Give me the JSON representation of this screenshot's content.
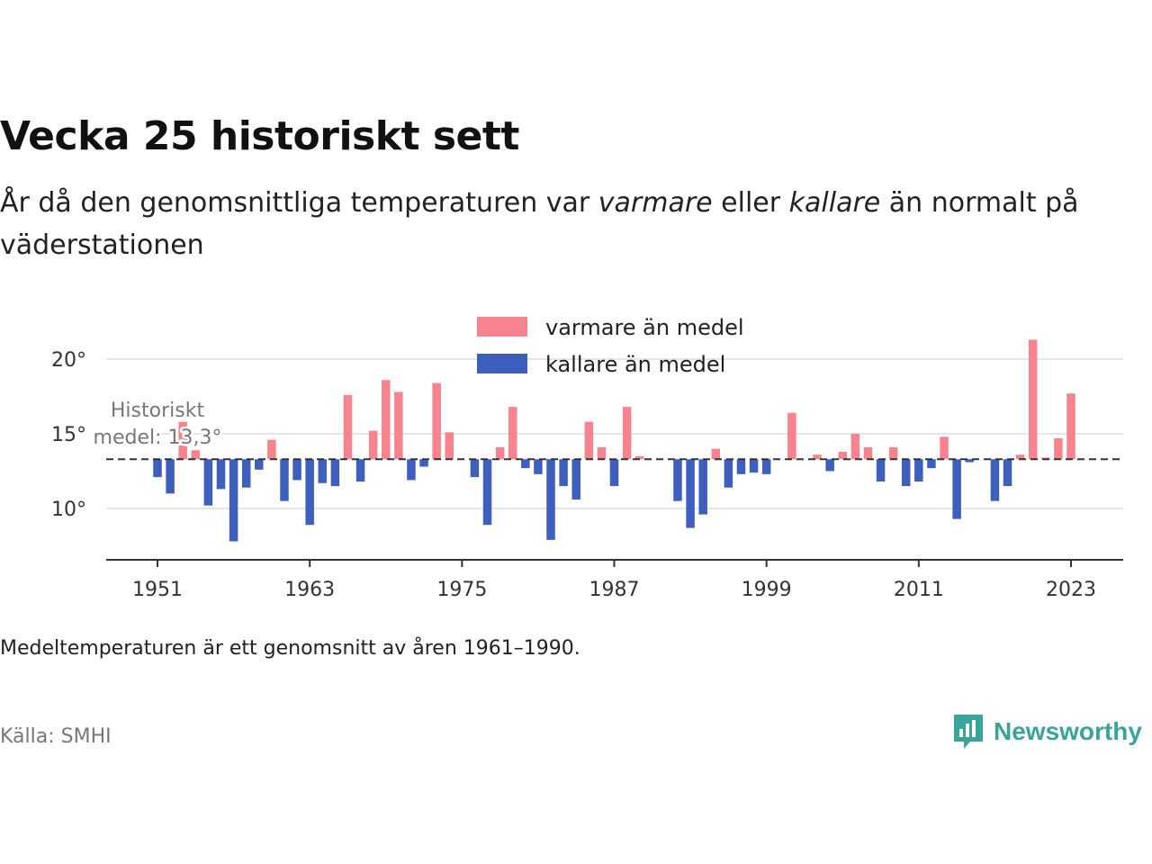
{
  "title": "Vecka 25 historiskt sett",
  "subtitle": {
    "part1": "År då den genomsnittliga temperaturen var ",
    "warmer": "varmare",
    "part2": " eller ",
    "colder": "kallare",
    "part3": " än normalt på väderstationen"
  },
  "note": "Medeltemperaturen är ett genomsnitt av åren 1961–1990.",
  "source": "Källa: SMHI",
  "brand": "Newsworthy",
  "colors": {
    "warm": "#f7838f",
    "cold": "#3f5fbf",
    "grid": "#dddddd",
    "axis": "#333333",
    "brand": "#3aa39a"
  },
  "chart_data": {
    "type": "bar",
    "baseline": 13.3,
    "baseline_label": [
      "Historiskt",
      "medel: 13,3°"
    ],
    "ylim": [
      6.5,
      22.5
    ],
    "yticks": [
      10,
      15,
      20
    ],
    "ytick_labels": [
      "10°",
      "15°",
      "20°"
    ],
    "xticks": [
      1951,
      1963,
      1975,
      1987,
      1999,
      2011,
      2023
    ],
    "xlim": [
      1947,
      2027
    ],
    "legend": [
      {
        "key": "warm",
        "label": "varmare än medel"
      },
      {
        "key": "cold",
        "label": "kallare än medel"
      }
    ],
    "years": [
      1951,
      1952,
      1953,
      1954,
      1955,
      1956,
      1957,
      1958,
      1959,
      1960,
      1961,
      1962,
      1963,
      1964,
      1965,
      1966,
      1967,
      1968,
      1969,
      1970,
      1971,
      1972,
      1973,
      1974,
      1975,
      1976,
      1977,
      1978,
      1979,
      1980,
      1981,
      1982,
      1983,
      1984,
      1985,
      1986,
      1987,
      1988,
      1989,
      1990,
      1991,
      1992,
      1993,
      1994,
      1995,
      1996,
      1997,
      1998,
      1999,
      2000,
      2001,
      2002,
      2003,
      2004,
      2005,
      2006,
      2007,
      2008,
      2009,
      2010,
      2011,
      2012,
      2013,
      2014,
      2015,
      2016,
      2017,
      2018,
      2019,
      2020,
      2021,
      2022,
      2023
    ],
    "values": [
      12.1,
      11.0,
      15.8,
      13.9,
      10.2,
      11.3,
      7.8,
      11.4,
      12.6,
      14.6,
      10.5,
      11.9,
      8.9,
      11.7,
      11.5,
      17.6,
      11.8,
      15.2,
      18.6,
      17.8,
      11.9,
      12.8,
      18.4,
      15.1,
      13.3,
      12.1,
      8.9,
      14.1,
      16.8,
      12.7,
      12.3,
      7.9,
      11.5,
      10.6,
      15.8,
      14.1,
      11.5,
      16.8,
      13.5,
      13.3,
      13.3,
      10.5,
      8.7,
      9.6,
      14.0,
      11.4,
      12.3,
      12.4,
      12.3,
      13.3,
      16.4,
      13.3,
      13.6,
      12.5,
      13.8,
      15.0,
      14.1,
      11.8,
      14.1,
      11.5,
      11.8,
      12.7,
      14.8,
      9.3,
      13.1,
      13.3,
      10.5,
      11.5,
      13.6,
      21.3,
      13.4,
      14.7,
      17.7
    ]
  }
}
